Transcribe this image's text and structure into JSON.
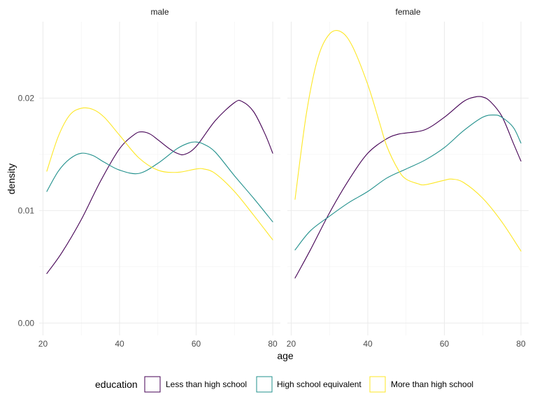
{
  "chart_data": {
    "type": "line",
    "xlabel": "age",
    "ylabel": "density",
    "xlim": [
      19,
      82
    ],
    "ylim": [
      -0.0011,
      0.0268
    ],
    "x_ticks": [
      20,
      40,
      60,
      80
    ],
    "y_ticks": [
      0.0,
      0.01,
      0.02
    ],
    "y_tick_labels": [
      "0.00",
      "0.01",
      "0.02"
    ],
    "grid": true,
    "legend": {
      "title": "education",
      "position": "bottom",
      "entries": [
        {
          "label": "Less than high school",
          "color": "#440154"
        },
        {
          "label": "High school equivalent",
          "color": "#21908c"
        },
        {
          "label": "More than high school",
          "color": "#fde725"
        }
      ]
    },
    "facets": [
      {
        "label": "male",
        "series": [
          {
            "key": "less",
            "color": "#440154",
            "x": [
              21,
              25,
              30,
              35,
              40,
              44,
              46,
              48,
              50,
              53,
              55,
              57,
              60,
              65,
              70,
              72,
              75,
              78,
              80
            ],
            "y": [
              0.0044,
              0.0063,
              0.0092,
              0.0126,
              0.0155,
              0.0168,
              0.017,
              0.0168,
              0.0163,
              0.0155,
              0.0151,
              0.015,
              0.0157,
              0.018,
              0.0196,
              0.0197,
              0.0188,
              0.0168,
              0.0151
            ]
          },
          {
            "key": "hs",
            "color": "#21908c",
            "x": [
              21,
              24,
              27,
              30,
              33,
              36,
              40,
              45,
              50,
              55,
              58,
              60,
              62,
              65,
              70,
              75,
              80
            ],
            "y": [
              0.0117,
              0.0135,
              0.0146,
              0.0151,
              0.0149,
              0.0143,
              0.0136,
              0.0133,
              0.0142,
              0.0155,
              0.016,
              0.0161,
              0.0159,
              0.0152,
              0.0131,
              0.0111,
              0.009
            ]
          },
          {
            "key": "more",
            "color": "#fde725",
            "x": [
              21,
              24,
              27,
              30,
              33,
              36,
              40,
              45,
              50,
              55,
              60,
              62,
              65,
              70,
              75,
              80
            ],
            "y": [
              0.0135,
              0.0166,
              0.0185,
              0.0191,
              0.019,
              0.0183,
              0.0167,
              0.0147,
              0.0136,
              0.0134,
              0.0137,
              0.0137,
              0.0133,
              0.0117,
              0.0096,
              0.0074
            ]
          }
        ]
      },
      {
        "label": "female",
        "series": [
          {
            "key": "less",
            "color": "#440154",
            "x": [
              21,
              25,
              30,
              35,
              40,
              45,
              48,
              50,
              55,
              60,
              65,
              68,
              70,
              72,
              75,
              78,
              80
            ],
            "y": [
              0.004,
              0.0065,
              0.0098,
              0.0127,
              0.0151,
              0.0164,
              0.0168,
              0.0169,
              0.0172,
              0.0183,
              0.0197,
              0.0201,
              0.0201,
              0.0197,
              0.0184,
              0.016,
              0.0144
            ]
          },
          {
            "key": "hs",
            "color": "#21908c",
            "x": [
              21,
              25,
              30,
              35,
              40,
              45,
              50,
              55,
              60,
              65,
              70,
              73,
              75,
              78,
              80
            ],
            "y": [
              0.0065,
              0.0082,
              0.0095,
              0.0107,
              0.0117,
              0.0129,
              0.0137,
              0.0145,
              0.0156,
              0.0171,
              0.0183,
              0.0185,
              0.0183,
              0.0174,
              0.016
            ]
          },
          {
            "key": "more",
            "color": "#fde725",
            "x": [
              21,
              24,
              27,
              30,
              33,
              36,
              40,
              43,
              45,
              48,
              50,
              53,
              55,
              60,
              62,
              65,
              70,
              75,
              80
            ],
            "y": [
              0.011,
              0.0187,
              0.0236,
              0.0257,
              0.0259,
              0.0246,
              0.0212,
              0.0179,
              0.0157,
              0.0136,
              0.0128,
              0.0124,
              0.0123,
              0.0127,
              0.0128,
              0.0125,
              0.0111,
              0.009,
              0.0064
            ]
          }
        ]
      }
    ]
  }
}
